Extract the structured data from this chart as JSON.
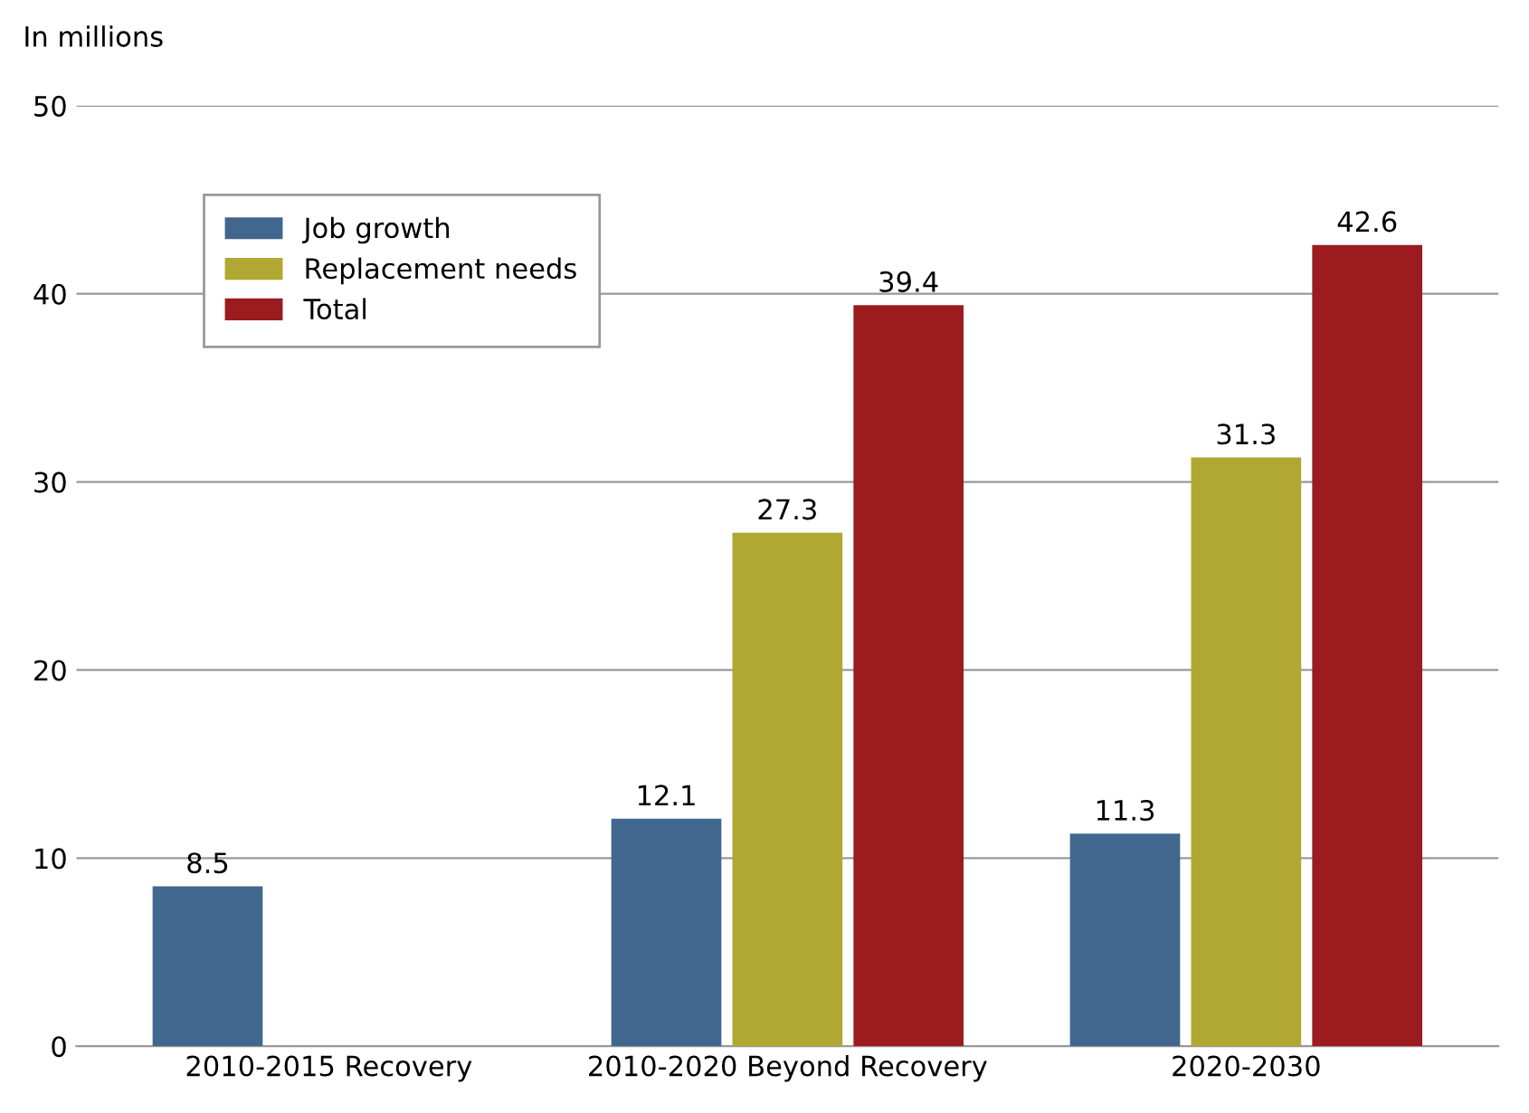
{
  "chart_data": {
    "type": "bar",
    "ylabel": "In millions",
    "categories": [
      "2010-2015 Recovery",
      "2010-2020 Beyond Recovery",
      "2020-2030"
    ],
    "series": [
      {
        "name": "Job growth",
        "color": "#41678e",
        "values": [
          8.5,
          12.1,
          11.3
        ]
      },
      {
        "name": "Replacement needs",
        "color": "#b0a832",
        "values": [
          null,
          27.3,
          31.3
        ]
      },
      {
        "name": "Total",
        "color": "#9b1b1f",
        "values": [
          null,
          39.4,
          42.6
        ]
      }
    ],
    "ylim": [
      0,
      50
    ],
    "yticks": [
      0,
      10,
      20,
      30,
      40,
      50
    ],
    "grid": "y",
    "legend": "top left",
    "data_labels": true
  }
}
